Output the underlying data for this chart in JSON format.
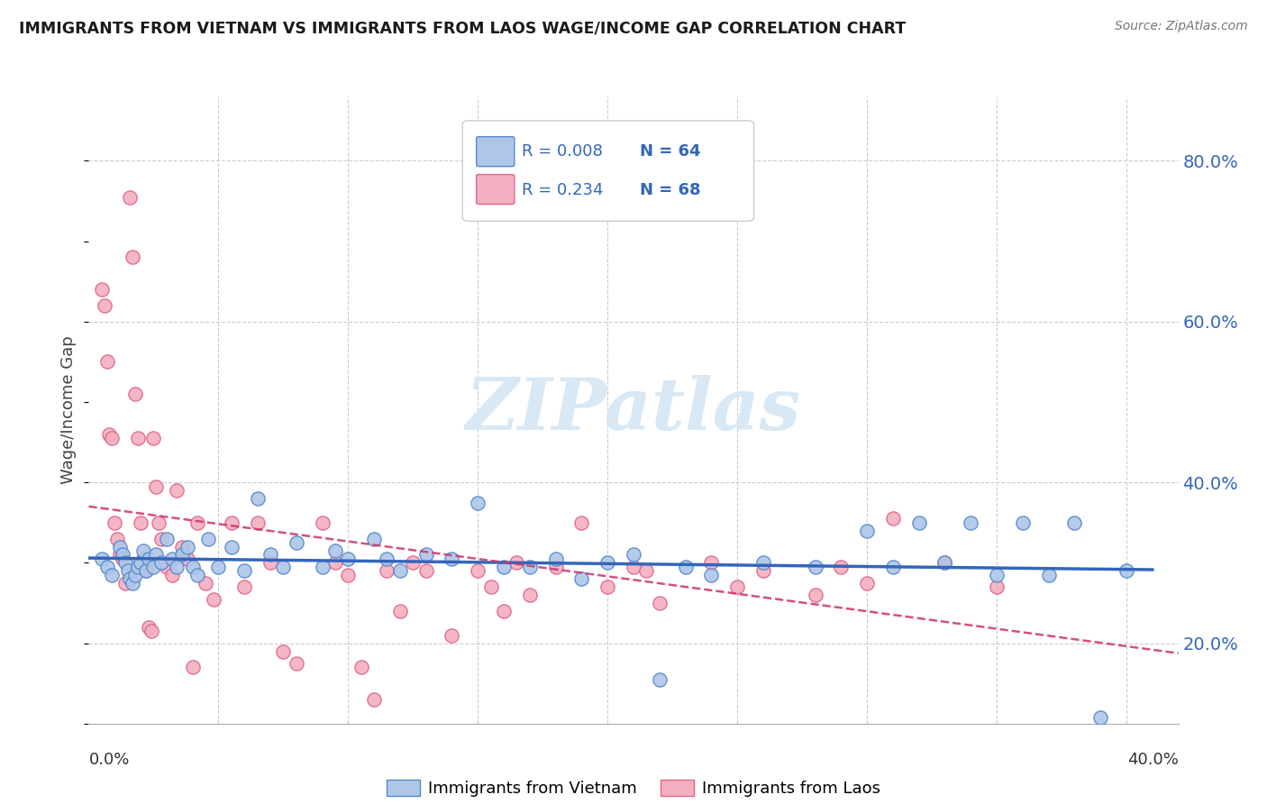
{
  "title": "IMMIGRANTS FROM VIETNAM VS IMMIGRANTS FROM LAOS WAGE/INCOME GAP CORRELATION CHART",
  "source": "Source: ZipAtlas.com",
  "ylabel": "Wage/Income Gap",
  "xlim": [
    0.0,
    0.42
  ],
  "ylim": [
    0.1,
    0.88
  ],
  "yticks": [
    0.2,
    0.4,
    0.6,
    0.8
  ],
  "ytick_labels": [
    "20.0%",
    "40.0%",
    "60.0%",
    "80.0%"
  ],
  "grid_yticks": [
    0.2,
    0.4,
    0.6,
    0.8
  ],
  "vietnam_color": "#aec6e8",
  "laos_color": "#f4afc0",
  "vietnam_edge": "#5588cc",
  "laos_edge": "#dd6688",
  "trendline_vietnam_color": "#3366bb",
  "trendline_laos_color": "#cc3366",
  "watermark_color": "#d8e8f4",
  "watermark": "ZIPatlas",
  "legend_R_vietnam": "R = 0.008",
  "legend_N_vietnam": "N = 64",
  "legend_R_laos": "R = 0.234",
  "legend_N_laos": "N = 68",
  "vietnam_x": [
    0.005,
    0.007,
    0.009,
    0.012,
    0.013,
    0.014,
    0.015,
    0.016,
    0.017,
    0.018,
    0.019,
    0.02,
    0.021,
    0.022,
    0.023,
    0.025,
    0.026,
    0.028,
    0.03,
    0.032,
    0.034,
    0.036,
    0.038,
    0.04,
    0.042,
    0.046,
    0.05,
    0.055,
    0.06,
    0.065,
    0.07,
    0.075,
    0.08,
    0.09,
    0.095,
    0.1,
    0.11,
    0.115,
    0.12,
    0.13,
    0.14,
    0.15,
    0.16,
    0.17,
    0.18,
    0.19,
    0.2,
    0.21,
    0.22,
    0.23,
    0.24,
    0.26,
    0.28,
    0.3,
    0.31,
    0.32,
    0.33,
    0.34,
    0.35,
    0.36,
    0.37,
    0.38,
    0.39,
    0.4
  ],
  "vietnam_y": [
    0.305,
    0.295,
    0.285,
    0.32,
    0.31,
    0.3,
    0.29,
    0.28,
    0.275,
    0.285,
    0.295,
    0.3,
    0.315,
    0.29,
    0.305,
    0.295,
    0.31,
    0.3,
    0.33,
    0.305,
    0.295,
    0.31,
    0.32,
    0.295,
    0.285,
    0.33,
    0.295,
    0.32,
    0.29,
    0.38,
    0.31,
    0.295,
    0.325,
    0.295,
    0.315,
    0.305,
    0.33,
    0.305,
    0.29,
    0.31,
    0.305,
    0.375,
    0.295,
    0.295,
    0.305,
    0.28,
    0.3,
    0.31,
    0.155,
    0.295,
    0.285,
    0.3,
    0.295,
    0.34,
    0.295,
    0.35,
    0.3,
    0.35,
    0.285,
    0.35,
    0.285,
    0.35,
    0.108,
    0.29
  ],
  "laos_x": [
    0.005,
    0.006,
    0.007,
    0.008,
    0.009,
    0.01,
    0.011,
    0.012,
    0.013,
    0.014,
    0.016,
    0.017,
    0.018,
    0.019,
    0.02,
    0.021,
    0.022,
    0.023,
    0.024,
    0.025,
    0.026,
    0.027,
    0.028,
    0.03,
    0.032,
    0.034,
    0.036,
    0.038,
    0.04,
    0.042,
    0.045,
    0.048,
    0.055,
    0.06,
    0.065,
    0.07,
    0.075,
    0.08,
    0.09,
    0.095,
    0.1,
    0.105,
    0.11,
    0.115,
    0.12,
    0.125,
    0.13,
    0.14,
    0.15,
    0.155,
    0.16,
    0.165,
    0.17,
    0.18,
    0.19,
    0.2,
    0.21,
    0.215,
    0.22,
    0.24,
    0.25,
    0.26,
    0.28,
    0.29,
    0.3,
    0.31,
    0.33,
    0.35
  ],
  "laos_y": [
    0.64,
    0.62,
    0.55,
    0.46,
    0.455,
    0.35,
    0.33,
    0.31,
    0.305,
    0.275,
    0.755,
    0.68,
    0.51,
    0.455,
    0.35,
    0.305,
    0.29,
    0.22,
    0.215,
    0.455,
    0.395,
    0.35,
    0.33,
    0.295,
    0.285,
    0.39,
    0.32,
    0.305,
    0.17,
    0.35,
    0.275,
    0.255,
    0.35,
    0.27,
    0.35,
    0.3,
    0.19,
    0.175,
    0.35,
    0.3,
    0.285,
    0.17,
    0.13,
    0.29,
    0.24,
    0.3,
    0.29,
    0.21,
    0.29,
    0.27,
    0.24,
    0.3,
    0.26,
    0.295,
    0.35,
    0.27,
    0.295,
    0.29,
    0.25,
    0.3,
    0.27,
    0.29,
    0.26,
    0.295,
    0.275,
    0.355,
    0.3,
    0.27
  ]
}
